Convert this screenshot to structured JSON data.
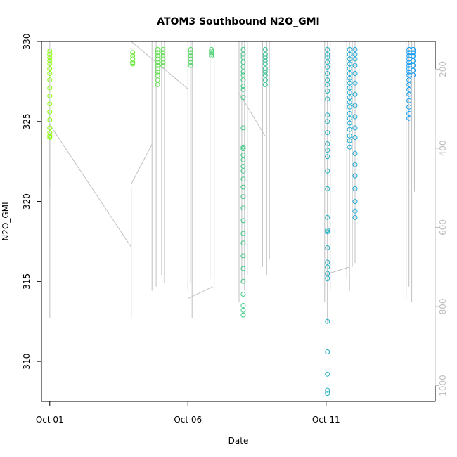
{
  "chart_data": {
    "type": "scatter",
    "title": "ATOM3 Southbound N2O_GMI",
    "xlabel": "Date",
    "ylabel": "N2O_GMI",
    "x_ticks": [
      "Oct 01",
      "Oct 06",
      "Oct 11"
    ],
    "y_ticks": [
      310,
      315,
      320,
      325,
      330
    ],
    "y2_ticks": [
      200,
      400,
      600,
      800,
      1000
    ],
    "ylim": [
      307.5,
      330
    ],
    "y2lim": [
      1040,
      130
    ],
    "xlim_days": [
      0.7,
      14.95
    ],
    "colors": {
      "point_start": "#88ff00",
      "point_end": "#0099ff",
      "pressure_line": "#c0c0c0",
      "axis": "#000000",
      "y2_axis": "#bebebe"
    },
    "series": [
      {
        "x": 1.0,
        "values": [
          329.4,
          329.2,
          329.0,
          328.8,
          328.6,
          328.3,
          328.0,
          327.6,
          327.1,
          326.6,
          326.1,
          325.6,
          325.1,
          324.6,
          324.3,
          324.1,
          324.0
        ]
      },
      {
        "x": 4.0,
        "values": [
          329.3,
          329.1,
          328.9,
          328.7,
          328.6
        ]
      },
      {
        "x": 4.9,
        "values": [
          329.5,
          329.3,
          329.1,
          328.9,
          328.7,
          328.5,
          328.3,
          328.1,
          327.9,
          327.6,
          327.3
        ]
      },
      {
        "x": 5.1,
        "values": [
          329.5,
          329.3,
          329.1,
          328.9,
          328.7,
          328.5
        ]
      },
      {
        "x": 6.1,
        "values": [
          329.5,
          329.3,
          329.1,
          328.9,
          328.7,
          328.5
        ]
      },
      {
        "x": 6.85,
        "values": [
          329.5,
          329.4,
          329.3,
          329.2,
          329.1
        ]
      },
      {
        "x": 8.0,
        "values": [
          329.5,
          329.2,
          329.0,
          328.7,
          328.4,
          328.1,
          327.9,
          327.6,
          327.2,
          327.0,
          326.5,
          324.6,
          323.4,
          323.3,
          322.9,
          322.6,
          322.2,
          321.9,
          321.4,
          320.9,
          320.3,
          319.6,
          318.8,
          318.0,
          317.4,
          316.6,
          315.8,
          315.0,
          314.2,
          313.5,
          313.2,
          312.9
        ]
      },
      {
        "x": 8.8,
        "values": [
          329.5,
          329.2,
          329.0,
          328.8,
          328.6,
          328.3,
          328.1,
          327.9,
          327.6,
          327.3
        ]
      },
      {
        "x": 11.05,
        "values": [
          329.5,
          329.2,
          329.0,
          328.7,
          328.4,
          328.0,
          327.6,
          327.3,
          326.9,
          326.4,
          325.4,
          325.0,
          324.3,
          323.6,
          323.2,
          322.8,
          321.9,
          320.8,
          319.0,
          318.2,
          318.1,
          317.1,
          316.2,
          315.9,
          315.5,
          315.2,
          312.5,
          310.6,
          309.2,
          308.2,
          308.0
        ]
      },
      {
        "x": 11.85,
        "values": [
          329.5,
          329.2,
          328.9,
          328.6,
          328.3,
          328.0,
          327.7,
          327.4,
          327.1,
          326.8,
          326.5,
          326.2,
          325.9,
          325.5,
          325.2,
          324.9,
          324.5,
          324.1,
          323.8,
          323.4
        ]
      },
      {
        "x": 12.05,
        "values": [
          329.5,
          329.2,
          328.9,
          328.5,
          328.0,
          327.4,
          326.7,
          326.0,
          325.3,
          324.6,
          324.0,
          323.0,
          322.3,
          321.6,
          320.8,
          320.0,
          319.4,
          319.0
        ]
      },
      {
        "x": 14.0,
        "values": [
          329.5,
          329.3,
          329.1,
          328.9,
          328.7,
          328.5,
          328.3,
          328.1,
          327.9,
          327.6,
          327.3,
          327.0,
          326.7,
          326.3,
          325.9,
          325.5,
          325.2
        ]
      },
      {
        "x": 14.15,
        "values": [
          329.5,
          329.3,
          329.1,
          328.8,
          328.5,
          328.2,
          327.9
        ]
      }
    ],
    "pressure_segments": [
      [
        [
          1.0,
          130
        ],
        [
          1.0,
          830
        ]
      ],
      [
        [
          1.0,
          360
        ],
        [
          1.0,
          500
        ]
      ],
      [
        [
          1.0,
          340
        ],
        [
          3.95,
          650
        ]
      ],
      [
        [
          3.95,
          500
        ],
        [
          3.95,
          830
        ]
      ],
      [
        [
          3.95,
          490
        ],
        [
          4.7,
          390
        ]
      ],
      [
        [
          4.7,
          130
        ],
        [
          4.7,
          760
        ]
      ],
      [
        [
          4.85,
          130
        ],
        [
          4.85,
          750
        ]
      ],
      [
        [
          5.05,
          130
        ],
        [
          5.05,
          720
        ]
      ],
      [
        [
          5.15,
          130
        ],
        [
          5.15,
          740
        ]
      ],
      [
        [
          3.95,
          130
        ],
        [
          6.0,
          250
        ]
      ],
      [
        [
          6.0,
          130
        ],
        [
          6.0,
          760
        ]
      ],
      [
        [
          6.1,
          130
        ],
        [
          6.1,
          740
        ]
      ],
      [
        [
          6.15,
          130
        ],
        [
          6.15,
          830
        ]
      ],
      [
        [
          6.0,
          780
        ],
        [
          6.9,
          750
        ]
      ],
      [
        [
          6.8,
          130
        ],
        [
          6.8,
          730
        ]
      ],
      [
        [
          6.95,
          130
        ],
        [
          6.95,
          760
        ]
      ],
      [
        [
          7.05,
          130
        ],
        [
          7.05,
          720
        ]
      ],
      [
        [
          7.85,
          130
        ],
        [
          7.85,
          790
        ]
      ],
      [
        [
          7.95,
          130
        ],
        [
          7.95,
          740
        ]
      ],
      [
        [
          8.05,
          130
        ],
        [
          8.05,
          760
        ]
      ],
      [
        [
          8.15,
          130
        ],
        [
          8.15,
          720
        ]
      ],
      [
        [
          7.85,
          260
        ],
        [
          8.8,
          370
        ]
      ],
      [
        [
          8.7,
          130
        ],
        [
          8.7,
          700
        ]
      ],
      [
        [
          8.85,
          130
        ],
        [
          8.85,
          720
        ]
      ],
      [
        [
          8.95,
          130
        ],
        [
          8.95,
          680
        ]
      ],
      [
        [
          10.95,
          130
        ],
        [
          10.95,
          790
        ]
      ],
      [
        [
          11.05,
          130
        ],
        [
          11.05,
          840
        ]
      ],
      [
        [
          11.15,
          130
        ],
        [
          11.15,
          760
        ]
      ],
      [
        [
          10.95,
          720
        ],
        [
          11.85,
          700
        ]
      ],
      [
        [
          11.75,
          130
        ],
        [
          11.75,
          730
        ]
      ],
      [
        [
          11.85,
          130
        ],
        [
          11.85,
          760
        ]
      ],
      [
        [
          11.95,
          130
        ],
        [
          11.95,
          700
        ]
      ],
      [
        [
          12.05,
          130
        ],
        [
          12.05,
          690
        ]
      ],
      [
        [
          13.9,
          130
        ],
        [
          13.9,
          780
        ]
      ],
      [
        [
          14.0,
          130
        ],
        [
          14.0,
          750
        ]
      ],
      [
        [
          14.1,
          130
        ],
        [
          14.1,
          790
        ]
      ],
      [
        [
          14.2,
          130
        ],
        [
          14.2,
          510
        ]
      ]
    ]
  }
}
